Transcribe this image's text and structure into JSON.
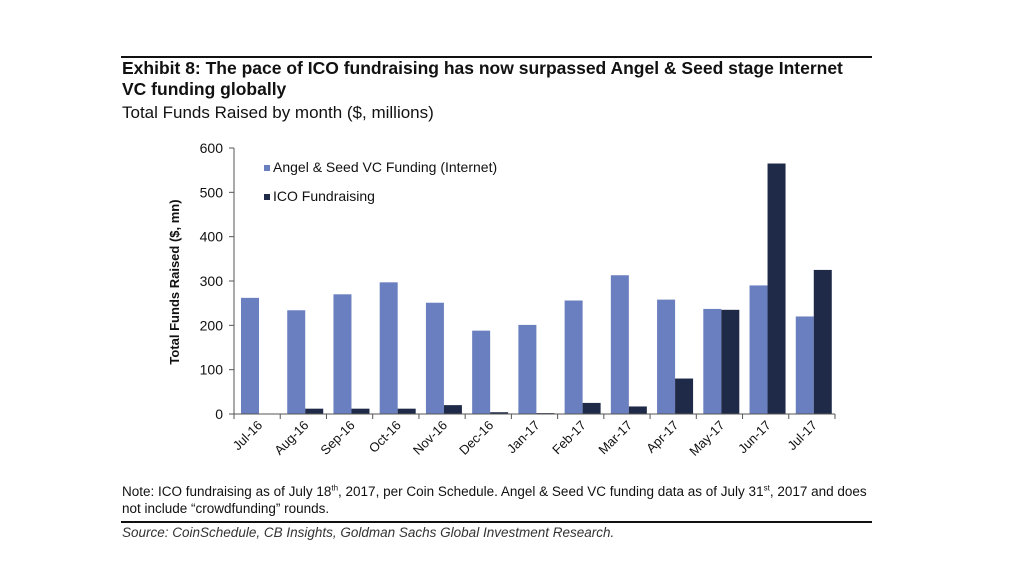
{
  "header": {
    "title": "Exhibit 8: The pace of ICO fundraising has now surpassed Angel & Seed stage Internet VC funding globally",
    "subtitle": "Total Funds Raised by month ($, millions)"
  },
  "chart_data": {
    "type": "bar",
    "title": "Exhibit 8: The pace of ICO fundraising has now surpassed Angel & Seed stage Internet VC funding globally",
    "subtitle": "Total Funds Raised by month ($, millions)",
    "xlabel": "",
    "ylabel": "Total Funds Raised ($, mn)",
    "ylim": [
      0,
      600
    ],
    "yticks": [
      0,
      100,
      200,
      300,
      400,
      500,
      600
    ],
    "grid": false,
    "legend_position": "top-left",
    "categories": [
      "Jul-16",
      "Aug-16",
      "Sep-16",
      "Oct-16",
      "Nov-16",
      "Dec-16",
      "Jan-17",
      "Feb-17",
      "Mar-17",
      "Apr-17",
      "May-17",
      "Jun-17",
      "Jul-17"
    ],
    "series": [
      {
        "name": "Angel & Seed VC Funding (Internet)",
        "color": "#6a7fbf",
        "values": [
          262,
          234,
          270,
          297,
          251,
          188,
          201,
          256,
          313,
          258,
          237,
          290,
          220
        ]
      },
      {
        "name": "ICO Fundraising",
        "color": "#1f2a48",
        "values": [
          0,
          12,
          12,
          12,
          20,
          4,
          2,
          25,
          17,
          80,
          235,
          565,
          325
        ]
      }
    ]
  },
  "note": {
    "prefix": "Note: ICO fundraising as of July 18",
    "sup1": "th",
    "middle": ", 2017, per Coin Schedule. Angel & Seed VC funding data as of July 31",
    "sup2": "st",
    "suffix": ", 2017 and does not include “crowdfunding” rounds."
  },
  "source": "Source: CoinSchedule, CB Insights, Goldman Sachs Global Investment Research."
}
